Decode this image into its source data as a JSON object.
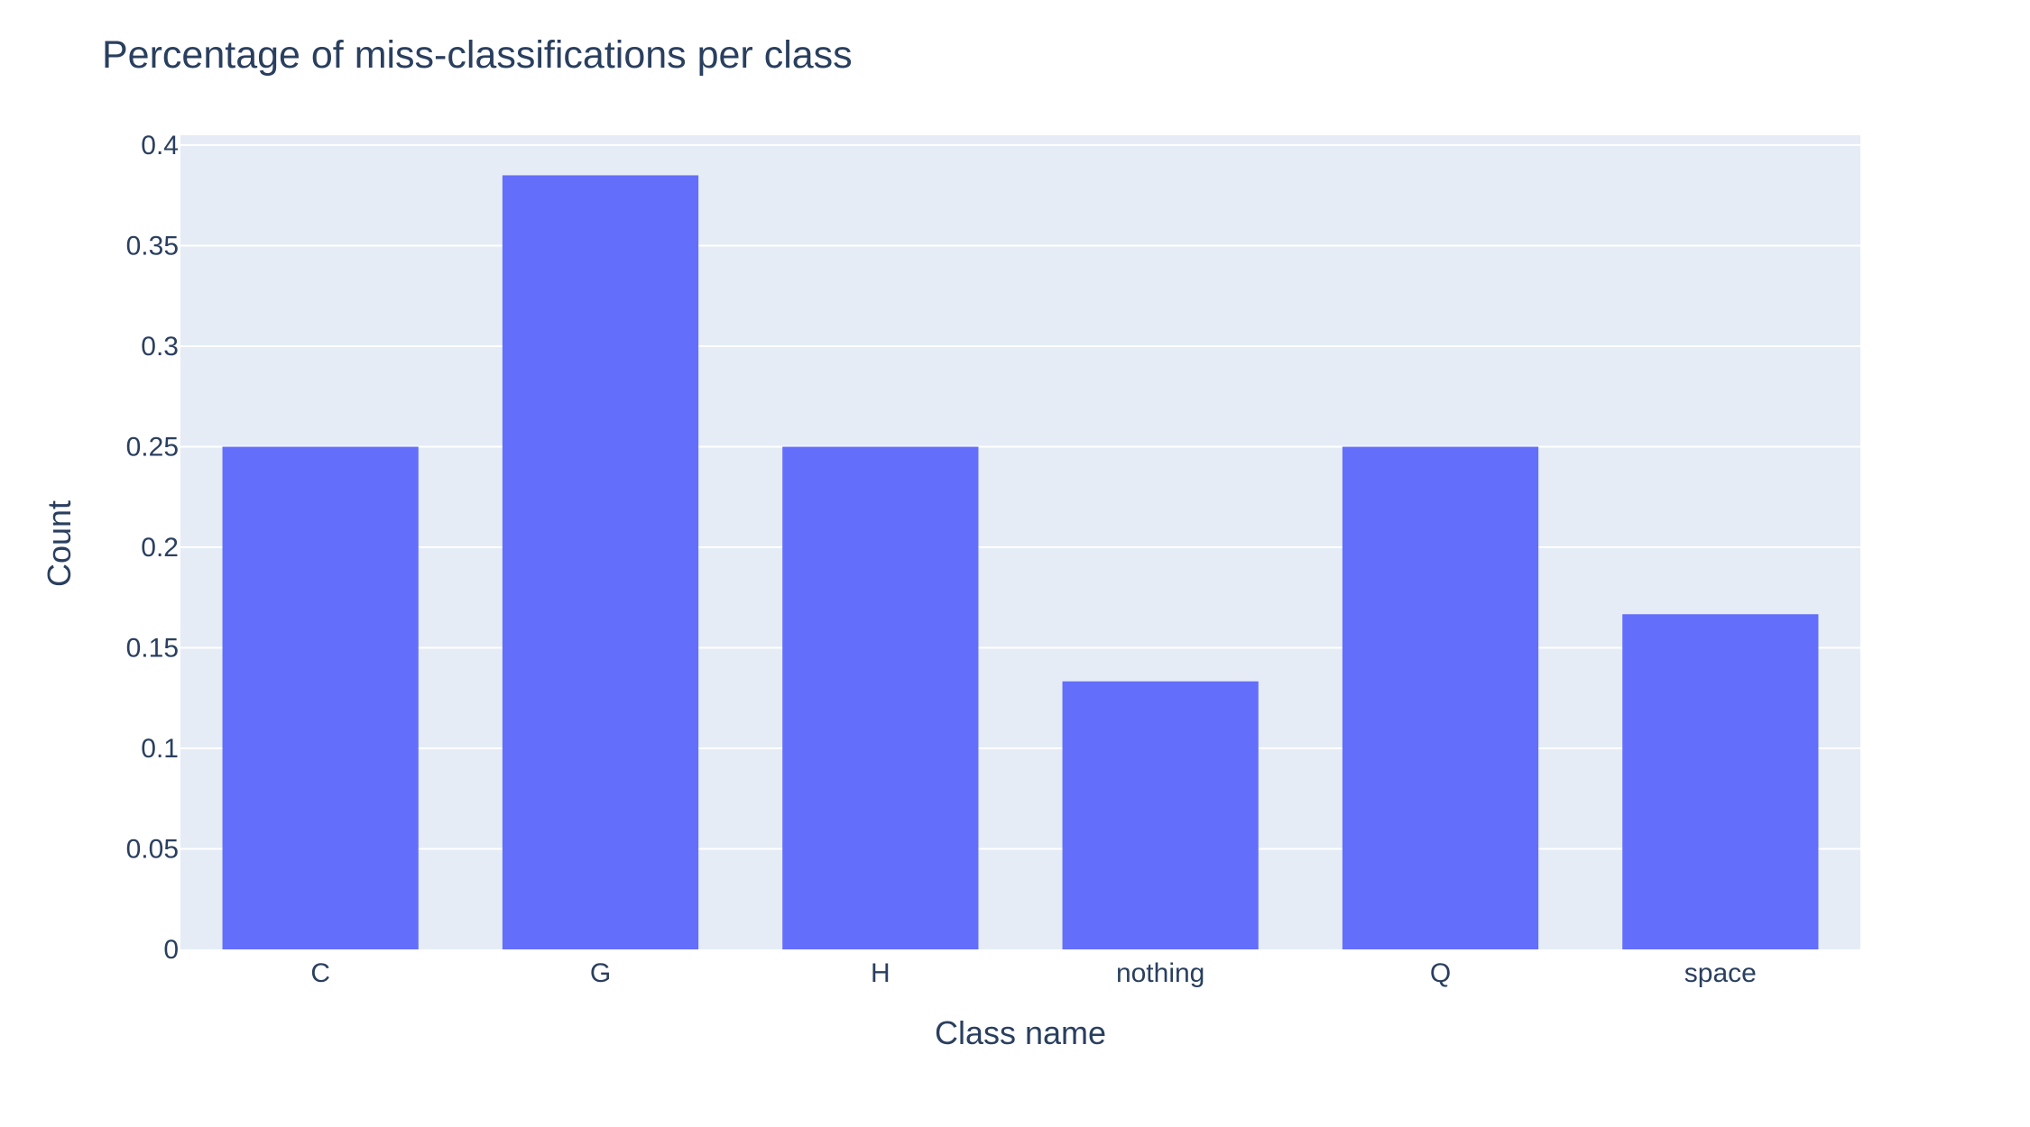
{
  "chart_data": {
    "type": "bar",
    "title": "Percentage of miss-classifications per class",
    "xlabel": "Class name",
    "ylabel": "Count",
    "categories": [
      "C",
      "G",
      "H",
      "nothing",
      "Q",
      "space"
    ],
    "series": [
      {
        "values": [
          0.25,
          0.385,
          0.25,
          0.1333,
          0.25,
          0.1667
        ]
      }
    ],
    "ylim": [
      0,
      0.4
    ],
    "yticks": [
      "0",
      "0.05",
      "0.1",
      "0.15",
      "0.2",
      "0.25",
      "0.3",
      "0.35",
      "0.4"
    ],
    "grid": true,
    "colors": {
      "bar": "#636efa",
      "plot_background": "#e5ecf6",
      "gridline": "#ffffff",
      "text": "#2a3f5f"
    }
  }
}
